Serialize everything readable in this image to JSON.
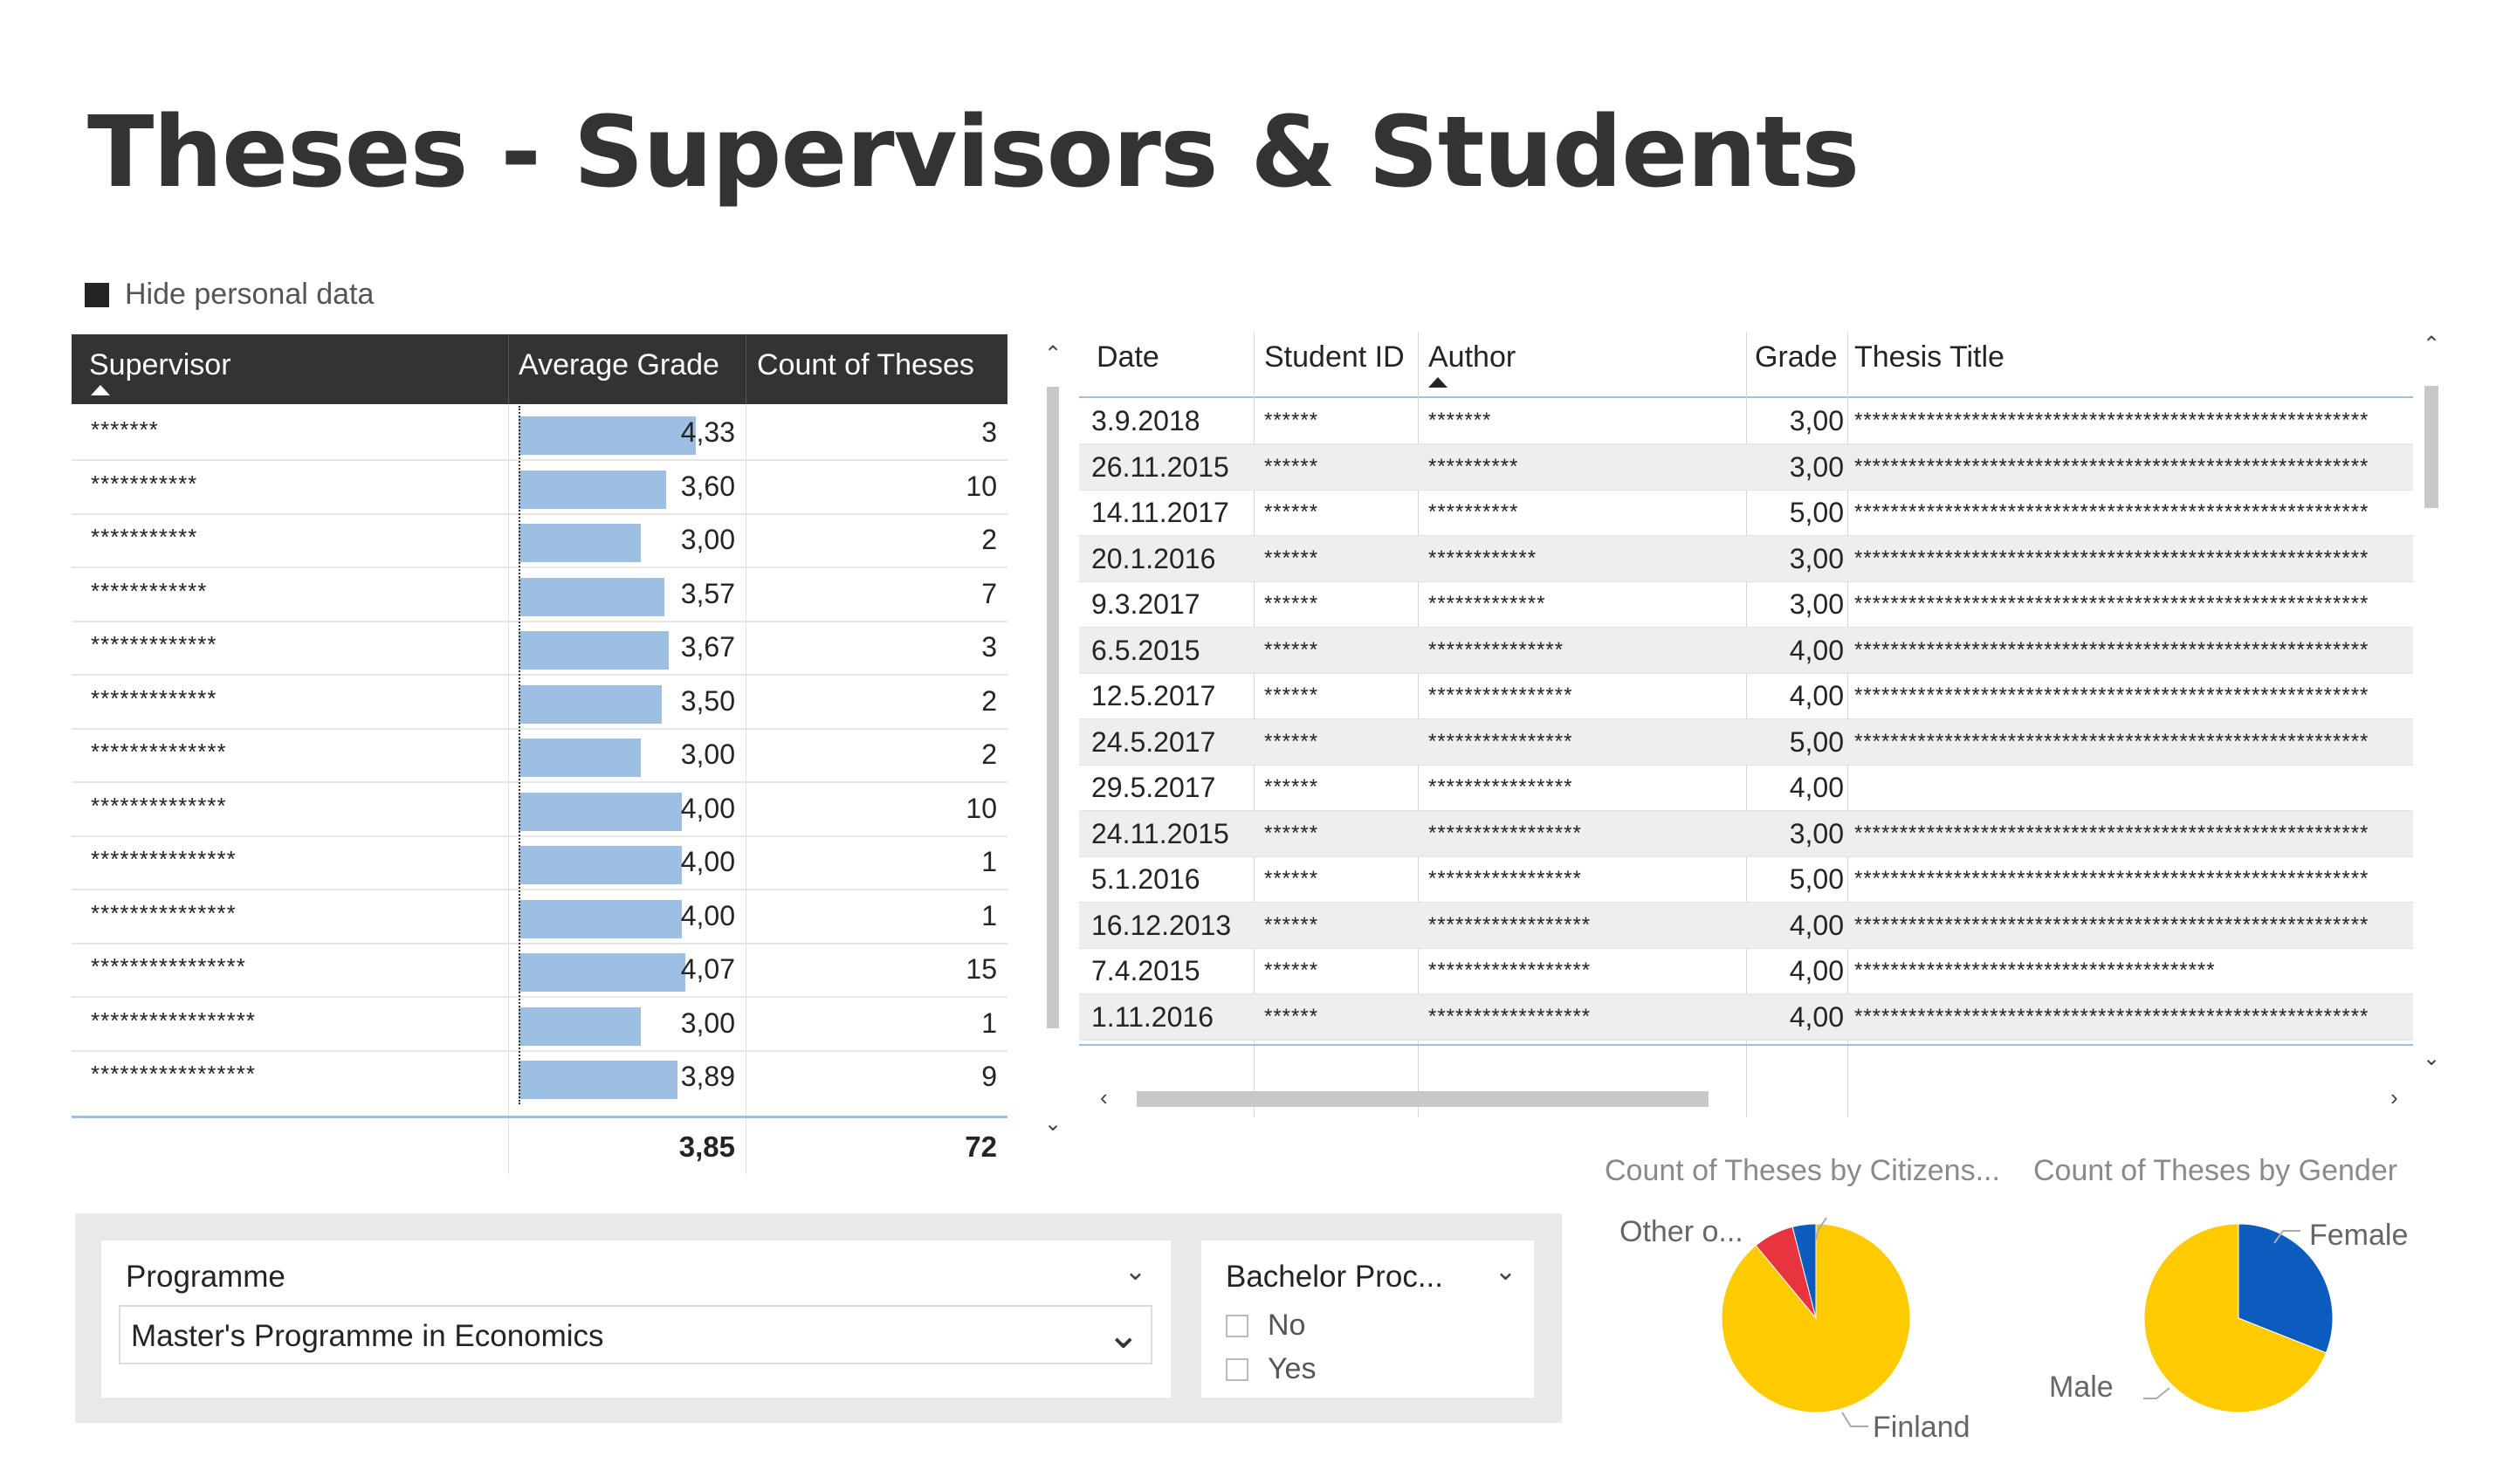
{
  "page": {
    "title": "Theses - Supervisors & Students",
    "toggle_label": "Hide personal data"
  },
  "supervisor_table": {
    "columns": [
      "Supervisor",
      "Average Grade",
      "Count of Theses"
    ],
    "rows": [
      {
        "name": "*******",
        "avg": "4,33",
        "avg_value": 4.33,
        "count": "3"
      },
      {
        "name": "***********",
        "avg": "3,60",
        "avg_value": 3.6,
        "count": "10"
      },
      {
        "name": "***********",
        "avg": "3,00",
        "avg_value": 3.0,
        "count": "2"
      },
      {
        "name": "************",
        "avg": "3,57",
        "avg_value": 3.57,
        "count": "7"
      },
      {
        "name": "*************",
        "avg": "3,67",
        "avg_value": 3.67,
        "count": "3"
      },
      {
        "name": "*************",
        "avg": "3,50",
        "avg_value": 3.5,
        "count": "2"
      },
      {
        "name": "**************",
        "avg": "3,00",
        "avg_value": 3.0,
        "count": "2"
      },
      {
        "name": "**************",
        "avg": "4,00",
        "avg_value": 4.0,
        "count": "10"
      },
      {
        "name": "***************",
        "avg": "4,00",
        "avg_value": 4.0,
        "count": "1"
      },
      {
        "name": "***************",
        "avg": "4,00",
        "avg_value": 4.0,
        "count": "1"
      },
      {
        "name": "****************",
        "avg": "4,07",
        "avg_value": 4.07,
        "count": "15"
      },
      {
        "name": "*****************",
        "avg": "3,00",
        "avg_value": 3.0,
        "count": "1"
      },
      {
        "name": "*****************",
        "avg": "3,89",
        "avg_value": 3.89,
        "count": "9"
      }
    ],
    "total_avg": "3,85",
    "total_count": "72"
  },
  "theses_table": {
    "columns": [
      "Date",
      "Student ID",
      "Author",
      "Grade",
      "Thesis Title"
    ],
    "rows": [
      {
        "date": "3.9.2018",
        "sid": "******",
        "author": "*******",
        "grade": "3,00",
        "title": "*********************************************************"
      },
      {
        "date": "26.11.2015",
        "sid": "******",
        "author": "**********",
        "grade": "3,00",
        "title": "*********************************************************"
      },
      {
        "date": "14.11.2017",
        "sid": "******",
        "author": "**********",
        "grade": "5,00",
        "title": "*********************************************************"
      },
      {
        "date": "20.1.2016",
        "sid": "******",
        "author": "************",
        "grade": "3,00",
        "title": "*********************************************************"
      },
      {
        "date": "9.3.2017",
        "sid": "******",
        "author": "*************",
        "grade": "3,00",
        "title": "*********************************************************"
      },
      {
        "date": "6.5.2015",
        "sid": "******",
        "author": "***************",
        "grade": "4,00",
        "title": "*********************************************************"
      },
      {
        "date": "12.5.2017",
        "sid": "******",
        "author": "****************",
        "grade": "4,00",
        "title": "*********************************************************"
      },
      {
        "date": "24.5.2017",
        "sid": "******",
        "author": "****************",
        "grade": "5,00",
        "title": "*********************************************************"
      },
      {
        "date": "29.5.2017",
        "sid": "******",
        "author": "****************",
        "grade": "4,00",
        "title": ""
      },
      {
        "date": "24.11.2015",
        "sid": "******",
        "author": "*****************",
        "grade": "3,00",
        "title": "*********************************************************"
      },
      {
        "date": "5.1.2016",
        "sid": "******",
        "author": "*****************",
        "grade": "5,00",
        "title": "*********************************************************"
      },
      {
        "date": "16.12.2013",
        "sid": "******",
        "author": "******************",
        "grade": "4,00",
        "title": "*********************************************************"
      },
      {
        "date": "7.4.2015",
        "sid": "******",
        "author": "******************",
        "grade": "4,00",
        "title": "****************************************"
      },
      {
        "date": "1.11.2016",
        "sid": "******",
        "author": "******************",
        "grade": "4,00",
        "title": "*********************************************************"
      }
    ]
  },
  "slicers": {
    "programme": {
      "title": "Programme",
      "selected": "Master's Programme in Economics"
    },
    "bachelor": {
      "title": "Bachelor Proc...",
      "options": [
        "No",
        "Yes"
      ]
    }
  },
  "chart_data": [
    {
      "type": "pie",
      "title": "Count of Theses by Citizens...",
      "slices": [
        {
          "label": "Finland",
          "value": 89,
          "color": "#FFCB00"
        },
        {
          "label": "Other o...",
          "value": 7,
          "color": "#E8343E"
        },
        {
          "label": "",
          "value": 4,
          "color": "#0C5BBF"
        }
      ]
    },
    {
      "type": "pie",
      "title": "Count of Theses by Gender",
      "slices": [
        {
          "label": "Female",
          "value": 31,
          "color": "#0C5BBF"
        },
        {
          "label": "Male",
          "value": 69,
          "color": "#FFCB00"
        }
      ]
    }
  ]
}
